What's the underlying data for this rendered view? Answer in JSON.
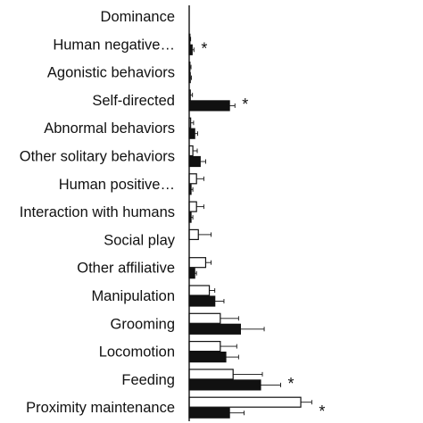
{
  "chart_data": {
    "type": "bar",
    "orientation": "horizontal",
    "grouped": true,
    "title": "",
    "xlabel": "",
    "ylabel": "",
    "xlim": [
      0,
      60
    ],
    "grid": false,
    "legend": "none",
    "categories": [
      "Dominance",
      "Human negative…",
      "Agonistic behaviors",
      "Self-directed",
      "Abnormal behaviors",
      "Other solitary behaviors",
      "Human positive…",
      "Interaction with humans",
      "Social play",
      "Other affiliative",
      "Manipulation",
      "Grooming",
      "Locomotion",
      "Feeding",
      "Proximity maintenance"
    ],
    "series": [
      {
        "fill": "#ffffff",
        "values": [
          0,
          0.2,
          0.2,
          0.3,
          0.4,
          1.0,
          2.0,
          2.0,
          2.5,
          4.5,
          5.5,
          8.5,
          8.5,
          12.0,
          30.5
        ],
        "errors": [
          0,
          0.2,
          0.3,
          0.6,
          0.8,
          1.2,
          2.0,
          2.0,
          3.5,
          1.5,
          1.5,
          5.0,
          4.5,
          8.0,
          3.0
        ]
      },
      {
        "fill": "#111111",
        "values": [
          0,
          0.8,
          0.3,
          11.0,
          1.5,
          3.0,
          0.5,
          0.5,
          0,
          1.5,
          7.0,
          14.0,
          10.0,
          19.5,
          11.0
        ],
        "errors": [
          0,
          0.5,
          0.3,
          1.5,
          0.8,
          1.5,
          0.5,
          0.5,
          0,
          0.5,
          2.5,
          6.5,
          3.5,
          5.5,
          4.0
        ]
      }
    ],
    "significance": [
      "",
      "*",
      "",
      "*",
      "",
      "",
      "",
      "",
      "",
      "",
      "",
      "",
      "",
      "*",
      "*"
    ]
  },
  "colors": {
    "axis": "#111111",
    "bar_outline": "#111111",
    "text": "#111111"
  }
}
